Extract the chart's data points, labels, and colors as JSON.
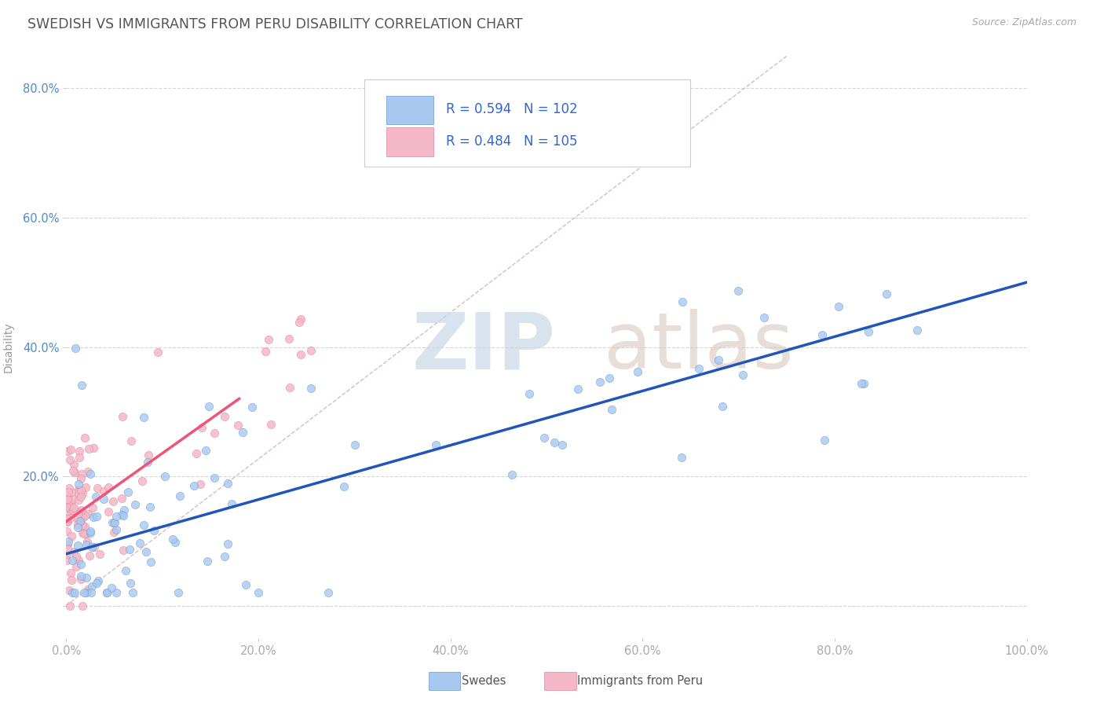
{
  "title": "SWEDISH VS IMMIGRANTS FROM PERU DISABILITY CORRELATION CHART",
  "source": "Source: ZipAtlas.com",
  "ylabel": "Disability",
  "xlim": [
    0.0,
    1.0
  ],
  "ylim": [
    -0.05,
    0.85
  ],
  "xticks": [
    0.0,
    0.2,
    0.4,
    0.6,
    0.8,
    1.0
  ],
  "xticklabels": [
    "0.0%",
    "20.0%",
    "40.0%",
    "60.0%",
    "80.0%",
    "100.0%"
  ],
  "ytick_vals": [
    0.0,
    0.2,
    0.4,
    0.6,
    0.8
  ],
  "yticklabels": [
    "",
    "20.0%",
    "40.0%",
    "60.0%",
    "80.0%"
  ],
  "swedish_color": "#a8c8f0",
  "swedish_edge_color": "#6699cc",
  "peru_color": "#f5b8c8",
  "peru_edge_color": "#dd8899",
  "swedish_line_color": "#2255bb",
  "peru_line_color": "#ee5577",
  "swedish_R": 0.594,
  "swedish_N": 102,
  "peru_R": 0.484,
  "peru_N": 105,
  "legend_R_N_color": "#3366cc",
  "background_color": "#ffffff",
  "grid_color": "#cccccc",
  "title_color": "#555555",
  "axis_label_color": "#999999",
  "x_tick_color": "#aaaaaa",
  "y_tick_color": "#5588cc",
  "diag_line_color": "#ddbbbb",
  "watermark_zip_color": "#c8d8e8",
  "watermark_atlas_color": "#d8c8c0",
  "sw_line_x_start": 0.0,
  "sw_line_x_end": 1.0,
  "sw_line_y_start": 0.08,
  "sw_line_y_end": 0.5,
  "peru_line_x_start": 0.0,
  "peru_line_x_end": 0.18,
  "peru_line_y_start": 0.13,
  "peru_line_y_end": 0.32
}
